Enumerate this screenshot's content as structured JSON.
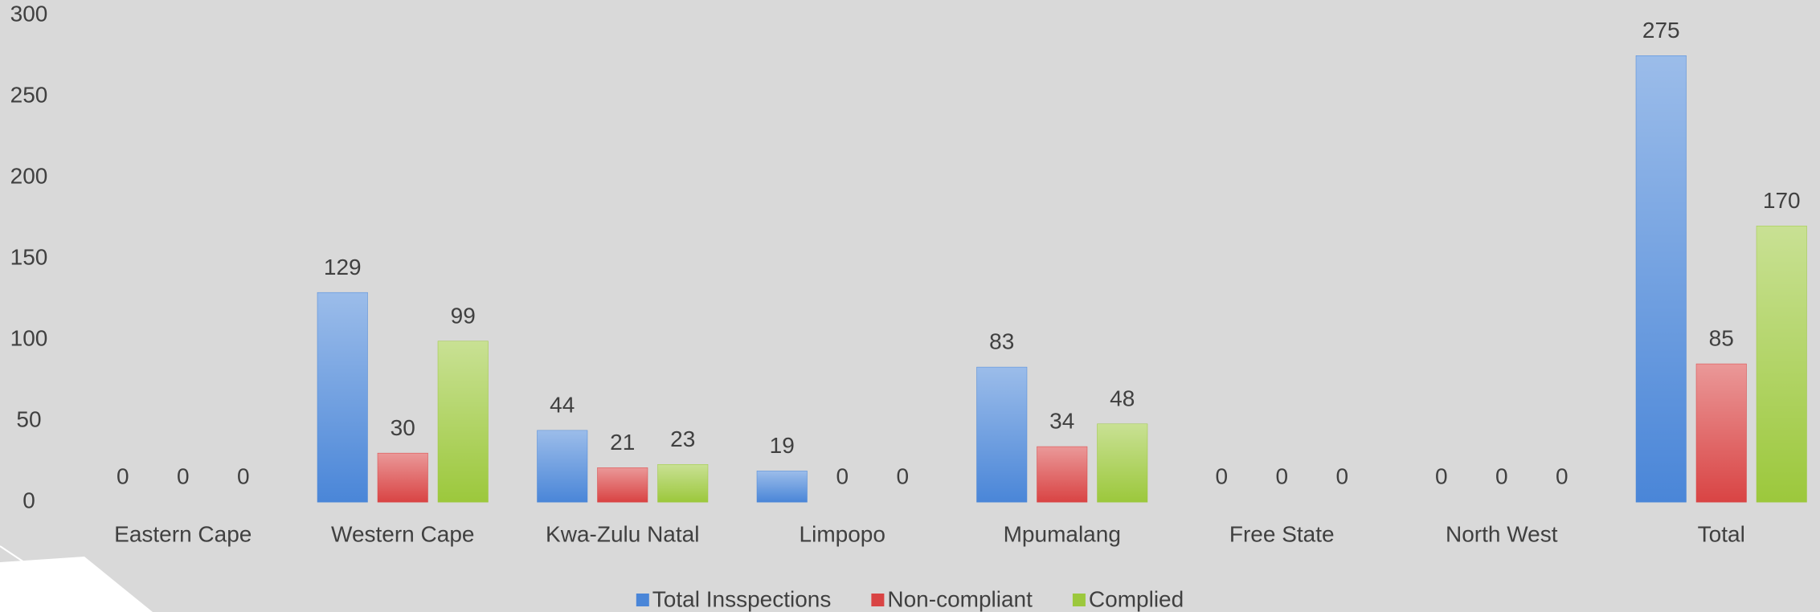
{
  "chart_data": {
    "type": "bar",
    "categories": [
      "Eastern Cape",
      "Western Cape",
      "Kwa-Zulu Natal",
      "Limpopo",
      "Mpumalang",
      "Free State",
      "North West",
      "Total"
    ],
    "series": [
      {
        "name": "Total Insspections",
        "color": "#4a86d8",
        "values": [
          0,
          129,
          44,
          19,
          83,
          0,
          0,
          275
        ]
      },
      {
        "name": "Non-compliant",
        "color": "#d94444",
        "values": [
          0,
          30,
          21,
          0,
          34,
          0,
          0,
          85
        ]
      },
      {
        "name": "Complied",
        "color": "#9cc83c",
        "values": [
          0,
          99,
          23,
          0,
          48,
          0,
          0,
          170
        ]
      }
    ],
    "ylim": [
      0,
      300
    ],
    "yticks": [
      0,
      50,
      100,
      150,
      200,
      250,
      300
    ],
    "grid": false,
    "legend": "bottom"
  }
}
